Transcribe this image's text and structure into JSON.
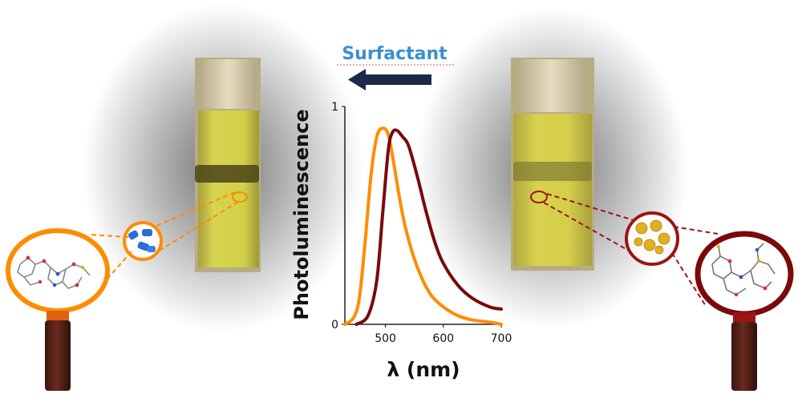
{
  "header": {
    "label": "Surfactant",
    "arrow_direction": "left",
    "label_color": "#3a8fd0",
    "arrow_color": "#1a2a48"
  },
  "colors": {
    "orange": "#ff8c00",
    "dark_red": "#7a0a0a",
    "solution": "#c8c840",
    "handle": "#5a2018"
  },
  "chart_data": {
    "type": "line",
    "xlabel": "λ (nm)",
    "ylabel": "Photoluminescence",
    "xlim": [
      430,
      700
    ],
    "ylim": [
      0,
      1
    ],
    "x_ticks": [
      500,
      600,
      700
    ],
    "y_ticks": [
      0,
      1
    ],
    "grid": false,
    "series": [
      {
        "color": "#ff8c00",
        "x": [
          430,
          445,
          455,
          465,
          475,
          485,
          495,
          505,
          515,
          525,
          535,
          550,
          565,
          580,
          600,
          625,
          650,
          680,
          700
        ],
        "y": [
          0.0,
          0.03,
          0.12,
          0.38,
          0.68,
          0.86,
          0.9,
          0.87,
          0.73,
          0.57,
          0.44,
          0.3,
          0.2,
          0.13,
          0.08,
          0.04,
          0.02,
          0.01,
          0.0
        ]
      },
      {
        "color": "#7a0a0a",
        "x": [
          450,
          470,
          485,
          495,
          505,
          512,
          520,
          530,
          540,
          555,
          570,
          585,
          600,
          625,
          650,
          680,
          700
        ],
        "y": [
          0.0,
          0.04,
          0.2,
          0.5,
          0.8,
          0.88,
          0.89,
          0.86,
          0.82,
          0.68,
          0.52,
          0.38,
          0.28,
          0.18,
          0.12,
          0.08,
          0.07
        ]
      }
    ]
  }
}
